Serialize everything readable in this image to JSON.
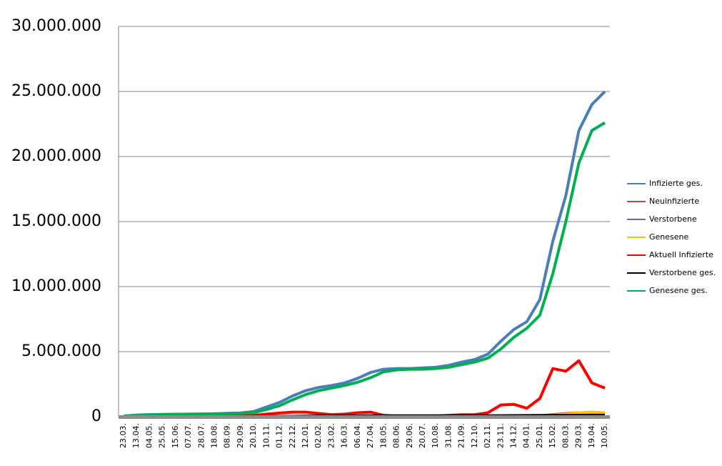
{
  "chart_data": {
    "type": "line",
    "categories": [
      "23.03.",
      "13.04.",
      "04.05.",
      "25.05.",
      "15.06.",
      "07.07.",
      "28.07.",
      "18.08.",
      "08.09.",
      "29.09.",
      "20.10.",
      "10.11.",
      "01.12.",
      "22.12.",
      "12.01.",
      "02.02.",
      "23.02.",
      "16.03.",
      "06.04.",
      "27.04.",
      "18.05.",
      "08.06.",
      "29.06.",
      "20.07.",
      "10.08.",
      "31.08.",
      "21.09.",
      "12.10.",
      "02.11.",
      "23.11.",
      "14.12.",
      "04.01.",
      "25.01.",
      "15.02.",
      "08.03.",
      "29.03.",
      "19.04.",
      "10.05."
    ],
    "series": [
      {
        "name": "Infizierte ges.",
        "color": "#4a7ebb",
        "values": [
          50000,
          130000,
          160000,
          180000,
          190000,
          200000,
          210000,
          230000,
          260000,
          290000,
          400000,
          750000,
          1100000,
          1600000,
          2000000,
          2250000,
          2400000,
          2600000,
          2950000,
          3400000,
          3650000,
          3700000,
          3700000,
          3750000,
          3800000,
          3950000,
          4200000,
          4400000,
          4800000,
          5800000,
          6700000,
          7300000,
          9000000,
          13500000,
          17000000,
          22000000,
          24000000,
          25000000
        ]
      },
      {
        "name": "Neuinfizierte",
        "color": "#be4b48",
        "values": [
          3000,
          2000,
          1000,
          1000,
          500,
          500,
          1000,
          1500,
          2000,
          3000,
          8000,
          20000,
          20000,
          25000,
          20000,
          10000,
          8000,
          10000,
          20000,
          20000,
          5000,
          1000,
          1000,
          2000,
          3000,
          8000,
          10000,
          15000,
          20000,
          50000,
          40000,
          30000,
          60000,
          150000,
          250000,
          300000,
          200000,
          100000
        ]
      },
      {
        "name": "Verstorbene",
        "color": "#7d60a0",
        "values": [
          100,
          200,
          100,
          50,
          20,
          10,
          10,
          10,
          20,
          30,
          100,
          300,
          500,
          700,
          900,
          600,
          300,
          200,
          300,
          300,
          100,
          50,
          50,
          50,
          50,
          100,
          200,
          300,
          400,
          600,
          700,
          600,
          700,
          900,
          1000,
          1200,
          1000,
          800
        ]
      },
      {
        "name": "Genesene",
        "color": "#ffc000",
        "values": [
          2000,
          3000,
          2000,
          1000,
          500,
          500,
          800,
          1000,
          2000,
          2500,
          5000,
          15000,
          18000,
          22000,
          22000,
          18000,
          12000,
          10000,
          15000,
          18000,
          15000,
          3000,
          1000,
          1500,
          2500,
          5000,
          8000,
          12000,
          15000,
          30000,
          40000,
          40000,
          50000,
          120000,
          200000,
          300000,
          350000,
          300000
        ]
      },
      {
        "name": "Aktuell Infizierte",
        "color": "#ff0000",
        "values": [
          20000,
          30000,
          20000,
          10000,
          10000,
          10000,
          20000,
          30000,
          40000,
          50000,
          100000,
          200000,
          280000,
          350000,
          350000,
          250000,
          150000,
          200000,
          300000,
          350000,
          100000,
          50000,
          50000,
          50000,
          50000,
          100000,
          150000,
          150000,
          300000,
          900000,
          950000,
          650000,
          1400000,
          3700000,
          3500000,
          4300000,
          2600000,
          2200000
        ]
      },
      {
        "name": "Verstorbene ges.",
        "color": "#000000",
        "values": [
          2000,
          5000,
          8000,
          9000,
          9000,
          9000,
          9500,
          9500,
          10000,
          10000,
          10500,
          12000,
          18000,
          28000,
          40000,
          48000,
          52000,
          55000,
          58000,
          62000,
          65000,
          66000,
          66000,
          66000,
          66000,
          67000,
          68000,
          70000,
          72000,
          78000,
          85000,
          90000,
          95000,
          100000,
          105000,
          110000,
          113000,
          115000
        ]
      },
      {
        "name": "Genesene ges.",
        "color": "#00b050",
        "values": [
          30000,
          100000,
          140000,
          160000,
          170000,
          180000,
          190000,
          200000,
          220000,
          250000,
          300000,
          550000,
          850000,
          1300000,
          1700000,
          2000000,
          2200000,
          2400000,
          2650000,
          3000000,
          3450000,
          3600000,
          3650000,
          3650000,
          3700000,
          3800000,
          4000000,
          4200000,
          4500000,
          5200000,
          6100000,
          6800000,
          7800000,
          11000000,
          15000000,
          19500000,
          22000000,
          22600000
        ]
      }
    ],
    "ylim": [
      0,
      30000000
    ],
    "yticks": [
      0,
      {
        "value": 5000000,
        "label": "5.000.000"
      },
      {
        "value": 10000000,
        "label": "10.000.000"
      },
      {
        "value": 15000000,
        "label": "15.000.000"
      },
      {
        "value": 20000000,
        "label": "20.000.000"
      },
      {
        "value": 25000000,
        "label": "25.000.000"
      },
      {
        "value": 30000000,
        "label": "30.000.000"
      }
    ],
    "grid": true,
    "legend": "right"
  }
}
